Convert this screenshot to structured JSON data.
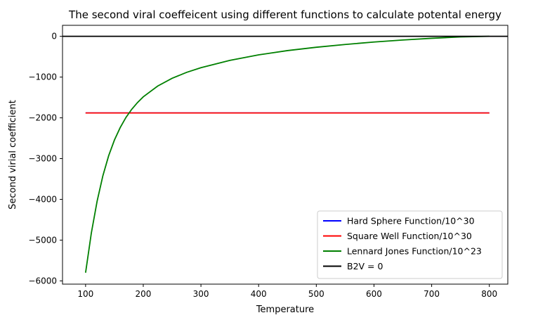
{
  "chart_data": {
    "type": "line",
    "title": "The second viral coeffeicent using different functions to calculate potental energy",
    "xlabel": "Temperature",
    "ylabel": "Second virial coefficient",
    "xlim": [
      60,
      832
    ],
    "ylim": [
      -6080,
      270
    ],
    "xticks": [
      100,
      200,
      300,
      400,
      500,
      600,
      700,
      800
    ],
    "yticks": [
      0,
      -1000,
      -2000,
      -3000,
      -4000,
      -5000,
      -6000
    ],
    "xtick_labels": [
      "100",
      "200",
      "300",
      "400",
      "500",
      "600",
      "700",
      "800"
    ],
    "ytick_labels": [
      "0",
      "−1000",
      "−2000",
      "−3000",
      "−4000",
      "−5000",
      "−6000"
    ],
    "grid": false,
    "legend_position": "lower-right",
    "series": [
      {
        "name": "Hard Sphere Function/10^30",
        "color": "#0000ff",
        "x": [
          100,
          800
        ],
        "y": [
          -1880,
          -1880
        ]
      },
      {
        "name": "Square Well Function/10^30",
        "color": "#ff0000",
        "x": [
          100,
          800
        ],
        "y": [
          -1880,
          -1880
        ]
      },
      {
        "name": "Lennard Jones Function/10^23",
        "color": "#008000",
        "x": [
          100,
          110,
          120,
          130,
          140,
          150,
          160,
          170,
          180,
          190,
          200,
          225,
          250,
          275,
          300,
          350,
          400,
          450,
          500,
          550,
          600,
          650,
          700,
          750,
          800
        ],
        "y": [
          -5800,
          -4825,
          -4045,
          -3420,
          -2930,
          -2545,
          -2240,
          -1990,
          -1790,
          -1625,
          -1485,
          -1220,
          -1030,
          -885,
          -770,
          -590,
          -455,
          -350,
          -268,
          -200,
          -140,
          -90,
          -48,
          -15,
          0
        ]
      },
      {
        "name": "B2V = 0",
        "color": "#000000",
        "x": [
          60,
          832
        ],
        "y": [
          0,
          0
        ]
      }
    ]
  }
}
